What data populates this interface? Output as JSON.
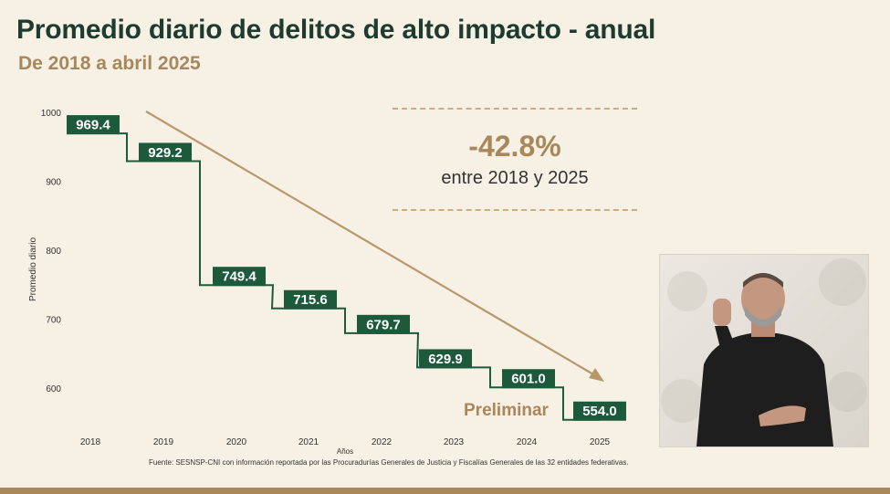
{
  "header": {
    "title": "Promedio diario de delitos de alto impacto - anual",
    "subtitle": "De 2018 a abril 2025"
  },
  "annotation": {
    "change": "-42.8%",
    "change_text": "entre 2018 y 2025",
    "preliminary": "Preliminar"
  },
  "source": "Fuente: SESNSP-CNI con información reportada por las Procuradurías Generales de Justicia y Fiscalías Generales de las 32 entidades federativas.",
  "chart_data": {
    "type": "line",
    "step": true,
    "categories": [
      "2018",
      "2019",
      "2020",
      "2021",
      "2022",
      "2023",
      "2024",
      "2025"
    ],
    "values": [
      969.4,
      929.2,
      749.4,
      715.6,
      679.7,
      629.9,
      601.0,
      554.0
    ],
    "value_labels": [
      "969.4",
      "929.2",
      "749.4",
      "715.6",
      "679.7",
      "629.9",
      "601.0",
      "554.0"
    ],
    "ylabel": "Promedio diario",
    "xlabel": "Años",
    "yticks": [
      600,
      700,
      800,
      900,
      1000
    ],
    "ylim": [
      560,
      1000
    ],
    "trend_arrow": true,
    "colors": {
      "line": "#1d5a3b",
      "label_bg": "#1d5a3b",
      "label_text": "#ffffff",
      "arrow": "#b8976a"
    }
  }
}
